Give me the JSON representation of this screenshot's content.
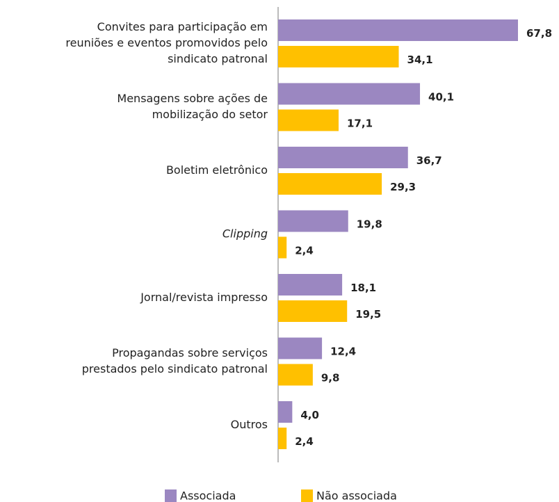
{
  "chart_data": {
    "type": "hbar",
    "categories": [
      [
        "Convites para participação em",
        "reuniões e eventos promovidos pelo",
        "sindicato patronal"
      ],
      [
        "Mensagens sobre ações de",
        "mobilização do setor"
      ],
      [
        "Boletim eletrônico"
      ],
      [
        "Clipping"
      ],
      [
        "Jornal/revista impresso"
      ],
      [
        "Propagandas sobre serviços",
        "prestados pelo sindicato patronal"
      ],
      [
        "Outros"
      ]
    ],
    "series": [
      {
        "name": "Associada",
        "color": "#9b87c1",
        "values": [
          67.8,
          40.1,
          36.7,
          19.8,
          18.1,
          12.4,
          4.0
        ],
        "value_labels": [
          "67,8",
          "40,1",
          "36,7",
          "19,8",
          "18,1",
          "12,4",
          "4,0"
        ]
      },
      {
        "name": "Não associada",
        "color": "#ffc000",
        "values": [
          34.1,
          17.1,
          29.3,
          2.4,
          19.5,
          9.8,
          2.4
        ],
        "value_labels": [
          "34,1",
          "17,1",
          "29,3",
          "2,4",
          "19,5",
          "9,8",
          "2,4"
        ]
      }
    ],
    "legend": "bottom"
  }
}
